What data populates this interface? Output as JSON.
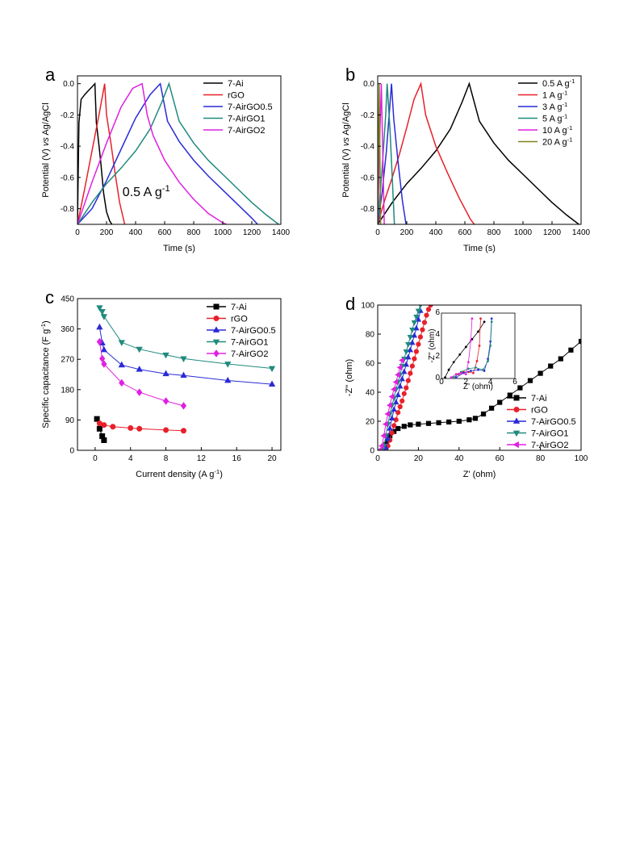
{
  "figure": {
    "colors": {
      "black": "#000000",
      "red": "#e8202a",
      "blue": "#2b2bd6",
      "teal": "#1f8a7d",
      "magenta": "#e020e0",
      "olive": "#808020"
    }
  },
  "chart_data": [
    {
      "panel": "a",
      "type": "line",
      "xlabel": "Time (s)",
      "ylabel_parts": [
        "Potential (V) ",
        "vs",
        " Ag/AgCl"
      ],
      "xlim": [
        0,
        1400
      ],
      "ylim": [
        -0.9,
        0.05
      ],
      "xticks": [
        0,
        200,
        400,
        600,
        800,
        1000,
        1200,
        1400
      ],
      "yticks": [
        0.0,
        -0.2,
        -0.4,
        -0.6,
        -0.8
      ],
      "ytick_labels": [
        "0.0",
        "-0.2",
        "-0.4",
        "-0.6",
        "-0.8"
      ],
      "legend_position": "top-right",
      "annotation": {
        "text": "0.5 A g",
        "sup": "-1",
        "x": 310,
        "y": -0.72
      },
      "series": [
        {
          "name": "7-Ai",
          "color": "#000000",
          "x": [
            0,
            10,
            25,
            50,
            80,
            100,
            120,
            130,
            145,
            160,
            180,
            200,
            222,
            237
          ],
          "y": [
            -0.9,
            -0.25,
            -0.1,
            -0.07,
            -0.04,
            -0.02,
            0.0,
            -0.25,
            -0.37,
            -0.5,
            -0.7,
            -0.82,
            -0.88,
            -0.9
          ]
        },
        {
          "name": "rGO",
          "color": "#e8202a",
          "x": [
            0,
            50,
            100,
            150,
            187,
            200,
            230,
            260,
            290,
            325
          ],
          "y": [
            -0.9,
            -0.67,
            -0.43,
            -0.19,
            0.0,
            -0.2,
            -0.38,
            -0.58,
            -0.76,
            -0.9
          ]
        },
        {
          "name": "7-AirGO0.5",
          "color": "#2b2bd6",
          "x": [
            0,
            100,
            200,
            300,
            400,
            500,
            570,
            620,
            700,
            800,
            900,
            1000,
            1100,
            1200,
            1240
          ],
          "y": [
            -0.9,
            -0.8,
            -0.62,
            -0.42,
            -0.22,
            -0.07,
            0.0,
            -0.24,
            -0.37,
            -0.49,
            -0.59,
            -0.68,
            -0.77,
            -0.86,
            -0.9
          ]
        },
        {
          "name": "7-AirGO1",
          "color": "#1f8a7d",
          "x": [
            0,
            100,
            200,
            300,
            400,
            500,
            580,
            630,
            700,
            800,
            900,
            1000,
            1100,
            1200,
            1300,
            1385
          ],
          "y": [
            -0.9,
            -0.76,
            -0.64,
            -0.54,
            -0.43,
            -0.29,
            -0.12,
            0.0,
            -0.24,
            -0.38,
            -0.49,
            -0.58,
            -0.67,
            -0.76,
            -0.84,
            -0.9
          ]
        },
        {
          "name": "7-AirGO2",
          "color": "#e020e0",
          "x": [
            0,
            100,
            200,
            300,
            380,
            445,
            480,
            520,
            600,
            700,
            800,
            900,
            1000,
            1025
          ],
          "y": [
            -0.9,
            -0.63,
            -0.38,
            -0.15,
            -0.03,
            0.0,
            -0.2,
            -0.33,
            -0.49,
            -0.63,
            -0.74,
            -0.83,
            -0.89,
            -0.9
          ]
        }
      ]
    },
    {
      "panel": "b",
      "type": "line",
      "xlabel": "Time (s)",
      "ylabel_parts": [
        "Potential (V) ",
        "vs",
        " Ag/AgCl"
      ],
      "xlim": [
        0,
        1400
      ],
      "ylim": [
        -0.9,
        0.05
      ],
      "xticks": [
        0,
        200,
        400,
        600,
        800,
        1000,
        1200,
        1400
      ],
      "yticks": [
        0.0,
        -0.2,
        -0.4,
        -0.6,
        -0.8
      ],
      "ytick_labels": [
        "0.0",
        "-0.2",
        "-0.4",
        "-0.6",
        "-0.8"
      ],
      "legend_position": "top-right",
      "series": [
        {
          "name": "0.5 A g",
          "sup": "-1",
          "color": "#000000",
          "x": [
            0,
            100,
            200,
            300,
            400,
            500,
            580,
            630,
            700,
            800,
            900,
            1000,
            1100,
            1200,
            1300,
            1385
          ],
          "y": [
            -0.9,
            -0.76,
            -0.64,
            -0.54,
            -0.43,
            -0.29,
            -0.12,
            0.0,
            -0.24,
            -0.38,
            -0.49,
            -0.58,
            -0.67,
            -0.76,
            -0.84,
            -0.9
          ]
        },
        {
          "name": "1 A g",
          "sup": "-1",
          "color": "#e8202a",
          "x": [
            0,
            50,
            100,
            150,
            200,
            250,
            297,
            330,
            400,
            480,
            560,
            640,
            665
          ],
          "y": [
            -0.9,
            -0.74,
            -0.6,
            -0.45,
            -0.28,
            -0.1,
            0.0,
            -0.2,
            -0.4,
            -0.57,
            -0.73,
            -0.87,
            -0.9
          ]
        },
        {
          "name": "3 A g",
          "sup": "-1",
          "color": "#2b2bd6",
          "x": [
            0,
            30,
            60,
            95,
            110,
            140,
            170,
            195
          ],
          "y": [
            -0.9,
            -0.7,
            -0.43,
            0.0,
            -0.22,
            -0.5,
            -0.75,
            -0.9
          ]
        },
        {
          "name": "5 A g",
          "sup": "-1",
          "color": "#1f8a7d",
          "x": [
            0,
            30,
            55,
            65,
            85,
            100,
            115
          ],
          "y": [
            -0.9,
            -0.55,
            -0.2,
            0.0,
            -0.3,
            -0.6,
            -0.9
          ]
        },
        {
          "name": "10 A g",
          "sup": "-1",
          "color": "#e020e0",
          "x": [
            0,
            12,
            25,
            35,
            45
          ],
          "y": [
            -0.9,
            -0.4,
            0.0,
            -0.45,
            -0.9
          ]
        },
        {
          "name": "20 A g",
          "sup": "-1",
          "color": "#808020",
          "x": [
            0,
            5,
            10,
            15,
            20
          ],
          "y": [
            -0.9,
            -0.4,
            0.0,
            -0.45,
            -0.9
          ]
        }
      ]
    },
    {
      "panel": "c",
      "type": "line",
      "xlabel_parts": [
        "Current density (A g",
        "-1",
        ")"
      ],
      "ylabel_parts": [
        "Specific capacitance (F g",
        "-1",
        ")"
      ],
      "xlim": [
        -2,
        21
      ],
      "ylim": [
        0,
        450
      ],
      "xticks": [
        0,
        4,
        8,
        12,
        16,
        20
      ],
      "yticks": [
        0,
        90,
        180,
        270,
        360,
        450
      ],
      "legend_position": "top-right",
      "series": [
        {
          "name": "7-Ai",
          "color": "#000000",
          "marker": "square",
          "x": [
            0.2,
            0.5,
            0.8,
            1.0
          ],
          "y": [
            93,
            64,
            42,
            30
          ]
        },
        {
          "name": "rGO",
          "color": "#e8202a",
          "marker": "circle",
          "x": [
            0.5,
            1,
            2,
            4,
            5,
            8,
            10
          ],
          "y": [
            80,
            75,
            70,
            66,
            64,
            60,
            58
          ]
        },
        {
          "name": "7-AirGO0.5",
          "color": "#2b2bd6",
          "marker": "triangle-up",
          "x": [
            0.5,
            0.8,
            1,
            3,
            5,
            8,
            10,
            15,
            20
          ],
          "y": [
            365,
            318,
            298,
            253,
            240,
            227,
            222,
            207,
            196
          ]
        },
        {
          "name": "7-AirGO1",
          "color": "#1f8a7d",
          "marker": "triangle-down",
          "x": [
            0.5,
            0.8,
            1,
            3,
            5,
            8,
            10,
            15,
            20
          ],
          "y": [
            423,
            412,
            397,
            320,
            300,
            283,
            272,
            256,
            243
          ]
        },
        {
          "name": "7-AirGO2",
          "color": "#e020e0",
          "marker": "diamond",
          "x": [
            0.5,
            0.8,
            1,
            3,
            5,
            8,
            10
          ],
          "y": [
            322,
            272,
            256,
            200,
            172,
            146,
            132
          ]
        }
      ]
    },
    {
      "panel": "d",
      "type": "scatter",
      "xlabel": "Z' (ohm)",
      "ylabel": "-Z'' (ohm)",
      "xlim": [
        0,
        100
      ],
      "ylim": [
        0,
        100
      ],
      "xticks": [
        0,
        20,
        40,
        60,
        80,
        100
      ],
      "yticks": [
        0,
        20,
        40,
        60,
        80,
        100
      ],
      "legend_position": "bottom-right",
      "series": [
        {
          "name": "7-Ai",
          "color": "#000000",
          "marker": "square",
          "x": [
            3,
            4,
            5,
            6,
            8,
            10,
            13,
            16,
            20,
            25,
            30,
            35,
            40,
            45,
            48,
            52,
            56,
            60,
            65,
            70,
            75,
            80,
            85,
            90,
            95,
            100
          ],
          "y": [
            1,
            4,
            7,
            10,
            13,
            15,
            16.5,
            17.5,
            18,
            18.5,
            19,
            19.5,
            20,
            21,
            22,
            25,
            29,
            33,
            38,
            43,
            48,
            53,
            58,
            63,
            69,
            75
          ]
        },
        {
          "name": "rGO",
          "color": "#e8202a",
          "marker": "circle",
          "x": [
            3,
            4,
            5,
            6,
            7,
            8,
            9,
            10,
            11,
            12,
            13,
            14,
            15,
            16,
            17,
            18,
            19,
            20,
            21,
            22,
            23,
            24,
            25,
            26
          ],
          "y": [
            0,
            1,
            3,
            7,
            12,
            17,
            21,
            26,
            30,
            34,
            39,
            43,
            48,
            53,
            58,
            63,
            68,
            73,
            78,
            83,
            88,
            93,
            97,
            100
          ]
        },
        {
          "name": "7-AirGO0.5",
          "color": "#2b2bd6",
          "marker": "triangle-up",
          "x": [
            3,
            4,
            5,
            6,
            7,
            8,
            9,
            10,
            11,
            12,
            13,
            14,
            15,
            16,
            17,
            18,
            19,
            20,
            21
          ],
          "y": [
            0,
            2,
            8,
            15,
            22,
            28,
            33,
            38,
            44,
            49,
            54,
            59,
            64,
            69,
            74,
            79,
            84,
            90,
            96
          ]
        },
        {
          "name": "7-AirGO1",
          "color": "#1f8a7d",
          "marker": "triangle-down",
          "x": [
            2,
            3,
            4,
            5,
            6,
            7,
            8,
            9,
            10,
            11,
            12,
            13,
            14,
            15,
            16,
            17,
            18,
            19,
            20,
            21
          ],
          "y": [
            0,
            3,
            10,
            18,
            25,
            31,
            36,
            42,
            47,
            52,
            58,
            63,
            68,
            73,
            78,
            83,
            88,
            92,
            96,
            100
          ]
        },
        {
          "name": "7-AirGO2",
          "color": "#e020e0",
          "marker": "triangle-left",
          "x": [
            1,
            2,
            3,
            4,
            5,
            6,
            7,
            8,
            9,
            10,
            11,
            12
          ],
          "y": [
            0,
            3,
            10,
            18,
            25,
            31,
            37,
            42,
            47,
            52,
            57,
            62
          ]
        }
      ],
      "inset": {
        "xlabel": "Z' (ohm)",
        "ylabel": "-Z'' (ohm)",
        "xlim": [
          0,
          6
        ],
        "ylim": [
          0,
          6
        ],
        "xticks": [
          0,
          2,
          4,
          6
        ],
        "yticks": [
          0,
          2,
          4,
          6
        ],
        "series": [
          {
            "color": "#000000",
            "x": [
              0.3,
              0.6,
              1.0,
              1.5,
              2.0,
              2.5,
              3.0,
              3.5
            ],
            "y": [
              0.1,
              0.8,
              1.5,
              2.2,
              2.9,
              3.6,
              4.3,
              5.2
            ]
          },
          {
            "color": "#e8202a",
            "x": [
              1.0,
              1.4,
              1.8,
              2.2,
              2.6,
              2.9,
              3.1,
              3.2
            ],
            "y": [
              0.1,
              0.4,
              0.6,
              0.6,
              0.5,
              1.6,
              3.0,
              5.5
            ]
          },
          {
            "color": "#2b2bd6",
            "x": [
              1.2,
              1.8,
              2.4,
              3.0,
              3.5,
              3.8,
              4.0,
              4.1
            ],
            "y": [
              0.1,
              0.5,
              0.7,
              0.8,
              0.7,
              1.8,
              3.4,
              5.5
            ]
          },
          {
            "color": "#1f8a7d",
            "x": [
              1.0,
              1.6,
              2.2,
              2.8,
              3.4,
              3.8,
              4.0,
              4.1
            ],
            "y": [
              0.1,
              0.6,
              0.9,
              1.0,
              0.8,
              1.6,
              3.0,
              5.2
            ]
          },
          {
            "color": "#e020e0",
            "x": [
              0.8,
              1.2,
              1.6,
              2.0,
              2.2,
              2.4,
              2.5
            ],
            "y": [
              0.1,
              0.4,
              0.5,
              0.4,
              1.5,
              3.5,
              5.5
            ]
          }
        ]
      }
    }
  ]
}
